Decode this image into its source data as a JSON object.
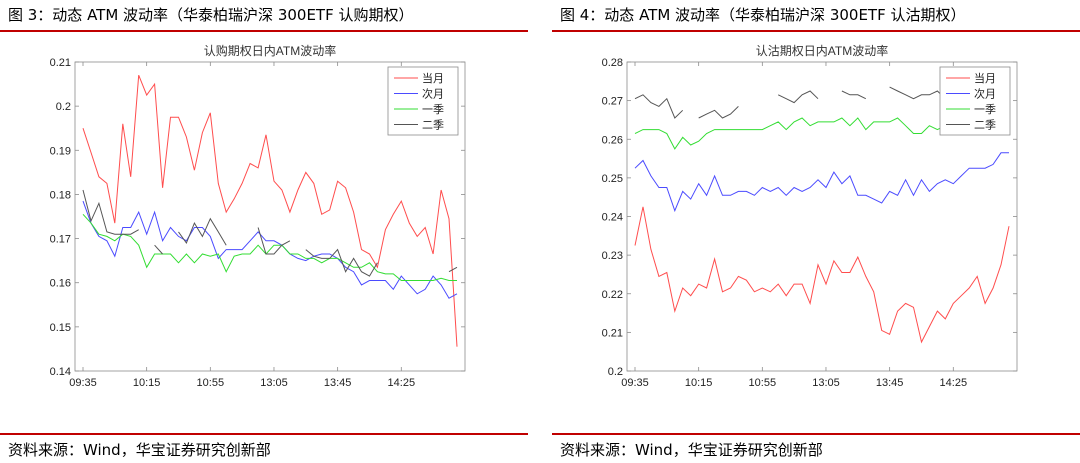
{
  "figures": [
    {
      "figure_title": "图 3：动态 ATM 波动率（华泰柏瑞沪深 300ETF 认购期权）",
      "source": "资料来源：Wind，华宝证券研究创新部",
      "rule_color": "#c00000"
    },
    {
      "figure_title": "图 4：动态 ATM 波动率（华泰柏瑞沪深 300ETF 认沽期权）",
      "source": "资料来源：Wind，华宝证券研究创新部",
      "rule_color": "#c00000"
    }
  ],
  "chart_data": [
    {
      "type": "line",
      "title": "认购期权日内ATM波动率",
      "xlabel": "",
      "ylabel": "",
      "x_ticks": [
        "09:35",
        "10:15",
        "10:55",
        "13:05",
        "13:45",
        "14:25"
      ],
      "x_tick_index": [
        0,
        8,
        16,
        24,
        32,
        40
      ],
      "n_points": 48,
      "ylim": [
        0.14,
        0.21
      ],
      "y_ticks": [
        "0.14",
        "0.15",
        "0.16",
        "0.17",
        "0.18",
        "0.19",
        "0.2",
        "0.21"
      ],
      "grid": false,
      "legend_position": "top-right",
      "series": [
        {
          "name": "当月",
          "color": "#ff4d4d",
          "values": [
            0.195,
            0.1895,
            0.184,
            0.1825,
            0.1735,
            0.196,
            0.184,
            0.207,
            0.2025,
            0.205,
            0.1815,
            0.1975,
            0.1975,
            0.193,
            0.1855,
            0.194,
            0.1985,
            0.1825,
            0.176,
            0.179,
            0.1825,
            0.187,
            0.186,
            0.1935,
            0.183,
            0.181,
            0.176,
            0.181,
            0.185,
            0.1825,
            0.1755,
            0.1765,
            0.183,
            0.1815,
            0.176,
            0.1675,
            0.1665,
            0.1635,
            0.172,
            0.1755,
            0.1785,
            0.1735,
            0.1705,
            0.1725,
            0.1665,
            0.181,
            0.1745,
            0.1455
          ]
        },
        {
          "name": "次月",
          "color": "#4b4bff",
          "values": [
            0.1785,
            0.1735,
            0.1705,
            0.1695,
            0.166,
            0.1725,
            0.1725,
            0.176,
            0.171,
            0.176,
            0.1695,
            0.1725,
            0.1705,
            0.1695,
            0.1725,
            0.1725,
            0.1705,
            0.1655,
            0.1675,
            0.1675,
            0.1675,
            0.1695,
            0.1715,
            0.1695,
            0.1695,
            0.1685,
            0.1665,
            0.1655,
            0.165,
            0.166,
            0.1665,
            0.1665,
            0.1655,
            0.1635,
            0.1625,
            0.1595,
            0.1605,
            0.1605,
            0.1605,
            0.1585,
            0.1615,
            0.1595,
            0.1575,
            0.1585,
            0.1615,
            0.1595,
            0.1565,
            0.1575
          ]
        },
        {
          "name": "一季",
          "color": "#33dd33",
          "values": [
            0.1755,
            0.1735,
            0.171,
            0.1705,
            0.1695,
            0.171,
            0.1705,
            0.1685,
            0.1635,
            0.1665,
            0.1665,
            0.1665,
            0.1645,
            0.1665,
            0.1645,
            0.1665,
            0.166,
            0.1665,
            0.1625,
            0.166,
            0.1665,
            0.1665,
            0.1685,
            0.1665,
            0.1685,
            0.1685,
            0.1665,
            0.1665,
            0.1655,
            0.1655,
            0.1645,
            0.1655,
            0.1655,
            0.1645,
            0.1635,
            0.1635,
            0.1645,
            0.1625,
            0.162,
            0.162,
            0.1605,
            0.1605,
            0.1605,
            0.1605,
            0.1605,
            0.161,
            0.1605,
            0.1605
          ]
        },
        {
          "name": "二季",
          "color": "#555555",
          "values": [
            0.181,
            0.174,
            0.178,
            0.1715,
            0.171,
            0.171,
            0.171,
            0.172,
            null,
            0.1685,
            0.1665,
            null,
            0.1715,
            0.169,
            0.1735,
            0.1705,
            0.1745,
            0.1715,
            0.1685,
            null,
            0.1705,
            null,
            0.1725,
            0.1665,
            0.1665,
            0.1685,
            0.1695,
            null,
            0.1675,
            0.166,
            0.1655,
            0.1655,
            0.1675,
            0.1625,
            0.1655,
            0.1625,
            0.1615,
            0.1645,
            null,
            null,
            null,
            null,
            null,
            null,
            null,
            null,
            0.1625,
            0.1635
          ]
        }
      ]
    },
    {
      "type": "line",
      "title": "认沽期权日内ATM波动率",
      "xlabel": "",
      "ylabel": "",
      "x_ticks": [
        "09:35",
        "10:15",
        "10:55",
        "13:05",
        "13:45",
        "14:25"
      ],
      "x_tick_index": [
        0,
        8,
        16,
        24,
        32,
        40
      ],
      "n_points": 48,
      "ylim": [
        0.2,
        0.28
      ],
      "y_ticks": [
        "0.2",
        "0.21",
        "0.22",
        "0.23",
        "0.24",
        "0.25",
        "0.26",
        "0.27",
        "0.28"
      ],
      "grid": false,
      "legend_position": "top-right",
      "series": [
        {
          "name": "当月",
          "color": "#ff4d4d",
          "values": [
            0.2325,
            0.2425,
            0.2315,
            0.2245,
            0.2255,
            0.2155,
            0.2215,
            0.2195,
            0.2225,
            0.2215,
            0.229,
            0.2205,
            0.2215,
            0.2245,
            0.2235,
            0.2205,
            0.2215,
            0.2205,
            0.2225,
            0.2195,
            0.2225,
            0.2225,
            0.2175,
            0.2275,
            0.2225,
            0.2285,
            0.2255,
            0.2255,
            0.2295,
            0.2245,
            0.2205,
            0.2105,
            0.2095,
            0.2155,
            0.2175,
            0.2165,
            0.2075,
            0.2115,
            0.2155,
            0.2135,
            0.2175,
            0.2195,
            0.2215,
            0.2245,
            0.2175,
            0.2215,
            0.2275,
            0.2375
          ]
        },
        {
          "name": "次月",
          "color": "#4b4bff",
          "values": [
            0.2525,
            0.2545,
            0.2505,
            0.2475,
            0.2475,
            0.2415,
            0.2465,
            0.2445,
            0.2485,
            0.2455,
            0.2505,
            0.2455,
            0.2455,
            0.2465,
            0.2465,
            0.2455,
            0.2475,
            0.2465,
            0.2475,
            0.2455,
            0.2475,
            0.2465,
            0.2475,
            0.2495,
            0.2475,
            0.2515,
            0.2485,
            0.2505,
            0.2455,
            0.2455,
            0.2445,
            0.2435,
            0.2465,
            0.2455,
            0.2495,
            0.2455,
            0.2495,
            0.2465,
            0.2485,
            0.2495,
            0.2485,
            0.2505,
            0.2525,
            0.2525,
            0.2525,
            0.2535,
            0.2565,
            0.2565
          ]
        },
        {
          "name": "一季",
          "color": "#33dd33",
          "values": [
            0.2615,
            0.2625,
            0.2625,
            0.2625,
            0.2615,
            0.2575,
            0.2605,
            0.2585,
            0.2595,
            0.2615,
            0.2625,
            0.2625,
            0.2625,
            0.2625,
            0.2625,
            0.2625,
            0.2625,
            0.2635,
            0.2645,
            0.2625,
            0.2645,
            0.2655,
            0.2635,
            0.2645,
            0.2645,
            0.2645,
            0.2655,
            0.2635,
            0.2655,
            0.2625,
            0.2645,
            0.2645,
            0.2645,
            0.2655,
            0.2635,
            0.2615,
            0.2615,
            0.2635,
            0.2625,
            0.2635,
            0.2645,
            0.2625,
            0.2645,
            0.2655,
            0.2665,
            null,
            null,
            null
          ]
        },
        {
          "name": "二季",
          "color": "#555555",
          "values": [
            0.2705,
            0.2715,
            0.2695,
            0.2685,
            0.2705,
            0.2655,
            0.2675,
            null,
            0.2655,
            0.2665,
            0.2675,
            0.2655,
            0.2665,
            0.2685,
            null,
            null,
            null,
            null,
            0.2715,
            0.2705,
            0.2695,
            0.2715,
            0.2725,
            0.2705,
            null,
            null,
            0.2725,
            0.2715,
            0.2715,
            0.2705,
            null,
            null,
            0.2735,
            0.2725,
            0.2715,
            0.2705,
            0.2715,
            0.2715,
            0.2725,
            0.2705,
            null,
            null,
            null,
            null,
            null,
            null,
            null,
            0.2775
          ]
        }
      ]
    }
  ]
}
